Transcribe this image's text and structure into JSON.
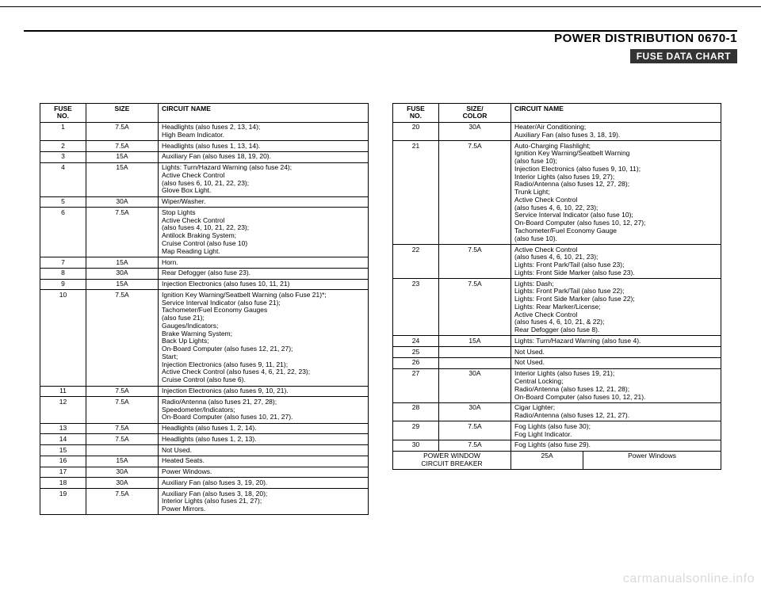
{
  "header": {
    "title": "POWER DISTRIBUTION   0670-1",
    "badge": "FUSE DATA CHART"
  },
  "left_table": {
    "headers": {
      "no": "FUSE\nNO.",
      "size": "SIZE",
      "name": "CIRCUIT NAME"
    },
    "rows": [
      {
        "no": "1",
        "size": "7.5A",
        "name": "Headlights (also fuses 2, 13, 14);\nHigh Beam Indicator."
      },
      {
        "no": "2",
        "size": "7.5A",
        "name": "Headlights (also fuses 1, 13, 14)."
      },
      {
        "no": "3",
        "size": "15A",
        "name": "Auxiliary Fan (also fuses 18, 19, 20)."
      },
      {
        "no": "4",
        "size": "15A",
        "name": "Lights: Turn/Hazard Warning (also fuse 24);\nActive Check Control\n   (also fuses 6, 10, 21, 22, 23);\nGlove Box Light."
      },
      {
        "no": "5",
        "size": "30A",
        "name": "Wiper/Washer."
      },
      {
        "no": "6",
        "size": "7.5A",
        "name": "Stop Lights\nActive Check Control\n   (also fuses 4, 10, 21, 22, 23);\nAntilock Braking System;\nCruise Control (also fuse 10)\nMap Reading Light."
      },
      {
        "no": "7",
        "size": "15A",
        "name": "Horn."
      },
      {
        "no": "8",
        "size": "30A",
        "name": "Rear Defogger (also fuse 23)."
      },
      {
        "no": "9",
        "size": "15A",
        "name": "Injection Electronics (also fuses 10, 11, 21)"
      },
      {
        "no": "10",
        "size": "7.5A",
        "name": "Ignition Key Warning/Seatbelt Warning (also Fuse 21)*;\nService Interval Indicator (also fuse 21);\nTachometer/Fuel Economy Gauges\n   (also fuse 21);\nGauges/Indicators;\nBrake Warning System;\nBack Up Lights;\nOn-Board Computer (also fuses 12, 21, 27);\nStart;\nInjection Electronics (also fuses 9, 11, 21);\nActive Check Control (also fuses 4, 6, 21, 22, 23);\nCruise Control (also fuse 6)."
      },
      {
        "no": "11",
        "size": "7.5A",
        "name": "Injection Electronics (also fuses 9, 10, 21)."
      },
      {
        "no": "12",
        "size": "7.5A",
        "name": "Radio/Antenna (also fuses 21, 27, 28);\nSpeedometer/Indicators;\nOn-Board Computer (also fuses 10, 21, 27)."
      },
      {
        "no": "13",
        "size": "7.5A",
        "name": "Headlights (also fuses 1, 2, 14)."
      },
      {
        "no": "14",
        "size": "7.5A",
        "name": "Headlights (also fuses 1, 2, 13)."
      },
      {
        "no": "15",
        "size": "",
        "name": "Not Used."
      },
      {
        "no": "16",
        "size": "15A",
        "name": "Heated Seats."
      },
      {
        "no": "17",
        "size": "30A",
        "name": "Power Windows."
      },
      {
        "no": "18",
        "size": "30A",
        "name": "Auxiliary Fan (also fuses 3, 19, 20)."
      },
      {
        "no": "19",
        "size": "7.5A",
        "name": "Auxiliary Fan (also fuses 3, 18, 20);\nInterior Lights (also fuses 21, 27);\nPower Mirrors."
      }
    ]
  },
  "right_table": {
    "headers": {
      "no": "FUSE\nNO.",
      "size": "SIZE/\nCOLOR",
      "name": "CIRCUIT NAME"
    },
    "rows": [
      {
        "no": "20",
        "size": "30A",
        "name": "Heater/Air Conditioning;\nAuxiliary Fan (also fuses 3, 18, 19)."
      },
      {
        "no": "21",
        "size": "7.5A",
        "name": "Auto-Charging Flashlight;\nIgnition Key Warning/Seatbelt Warning\n   (also fuse 10);\nInjection Electronics (also fuses 9, 10, 11);\nInterior Lights (also fuses 19, 27);\nRadio/Antenna (also fuses 12, 27, 28);\nTrunk Light;\nActive Check Control\n   (also fuses 4, 6, 10, 22, 23);\nService Interval Indicator (also fuse 10);\nOn-Board Computer (also fuses 10, 12, 27);\nTachometer/Fuel Economy Gauge\n   (also fuse 10)."
      },
      {
        "no": "22",
        "size": "7.5A",
        "name": "Active Check Control\n   (also fuses 4, 6, 10, 21, 23);\nLights: Front Park/Tail (also fuse 23);\nLights: Front Side Marker (also fuse 23)."
      },
      {
        "no": "23",
        "size": "7.5A",
        "name": "Lights: Dash;\nLights: Front Park/Tail (also fuse 22);\nLights: Front Side Marker (also fuse 22);\nLights: Rear Marker/License;\nActive Check Control\n   (also fuses 4, 6, 10, 21, & 22);\nRear Defogger (also fuse 8)."
      },
      {
        "no": "24",
        "size": "15A",
        "name": "Lights: Turn/Hazard Warning (also fuse 4)."
      },
      {
        "no": "25",
        "size": "",
        "name": "Not Used."
      },
      {
        "no": "26",
        "size": "",
        "name": "Not Used."
      },
      {
        "no": "27",
        "size": "30A",
        "name": "Interior Lights (also fuses 19, 21);\nCentral Locking;\nRadio/Antenna (also fuses 12, 21, 28);\nOn-Board Computer (also fuses 10, 12, 21)."
      },
      {
        "no": "28",
        "size": "30A",
        "name": "Cigar Lighter;\nRadio/Antenna (also fuses 12, 21, 27)."
      },
      {
        "no": "29",
        "size": "7.5A",
        "name": "Fog Lights (also fuse 30);\nFog Light Indicator."
      },
      {
        "no": "30",
        "size": "7.5A",
        "name": "Fog Lights (also fuse 29)."
      }
    ]
  },
  "power_window": {
    "label": "POWER WINDOW\nCIRCUIT BREAKER",
    "size": "25A",
    "name": "Power Windows"
  },
  "watermark": "carmanualsonline.info"
}
